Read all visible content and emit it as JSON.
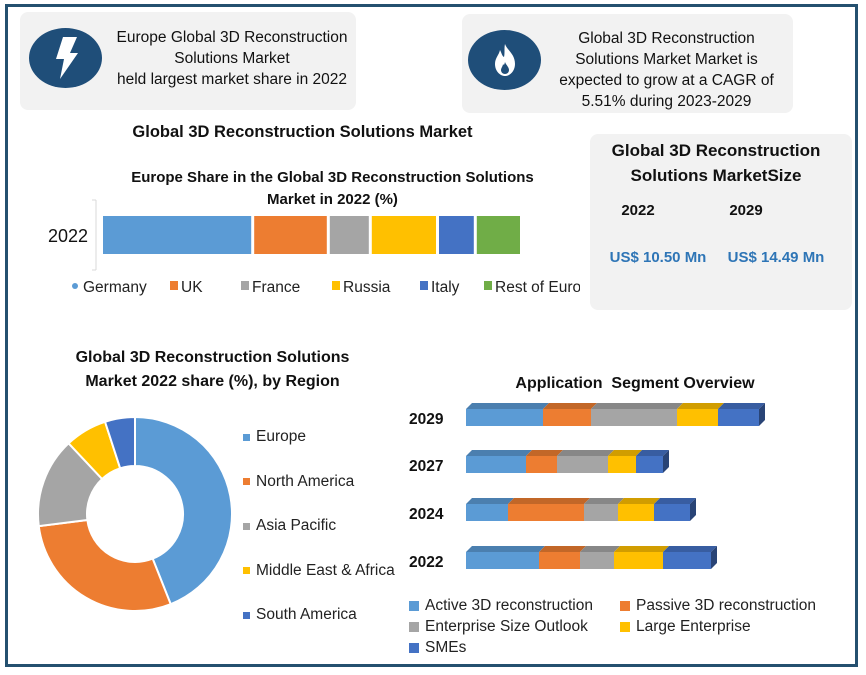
{
  "cards": {
    "left": {
      "icon": "lightning-bolt-icon",
      "lines": [
        "Europe Global 3D Reconstruction",
        "Solutions Market",
        "held largest market share in 2022"
      ]
    },
    "right": {
      "icon": "flame-icon",
      "lines": [
        "Global 3D Reconstruction",
        "Solutions Market Market is",
        "expected to grow at a CAGR of",
        "5.51% during 2023-2029"
      ]
    }
  },
  "main_title": "Global 3D Reconstruction Solutions Market",
  "market_size": {
    "title_lines": [
      "Global 3D Reconstruction",
      "Solutions MarketSize"
    ],
    "years": [
      "2022",
      "2029"
    ],
    "values": [
      "US$ 10.50 Mn",
      "US$ 14.49 Mn"
    ],
    "value_color": "#2e75b6"
  },
  "chart_data": [
    {
      "type": "bar",
      "orientation": "horizontal-stacked",
      "title": "Europe Share in the Global 3D Reconstruction Solutions Market in 2022 (%)",
      "title_lines": [
        "Europe Share in the Global 3D Reconstruction Solutions",
        "Market in 2022 (%)"
      ],
      "categories": [
        "2022"
      ],
      "series": [
        {
          "name": "Germany",
          "values": [
            36
          ],
          "color": "#5b9bd5"
        },
        {
          "name": "UK",
          "values": [
            18
          ],
          "color": "#ed7d31"
        },
        {
          "name": "France",
          "values": [
            10
          ],
          "color": "#a5a5a5"
        },
        {
          "name": "Russia",
          "values": [
            16
          ],
          "color": "#ffc000"
        },
        {
          "name": "Italy",
          "values": [
            9
          ],
          "color": "#4472c4"
        },
        {
          "name": "Rest of Europe",
          "values": [
            11
          ],
          "color": "#70ad47"
        }
      ],
      "legend": "bottom",
      "grid": false
    },
    {
      "type": "pie",
      "style": "donut",
      "title": "Global 3D Reconstruction Solutions Market 2022 share (%), by Region",
      "title_lines": [
        "Global 3D Reconstruction Solutions",
        "Market 2022 share (%), by Region"
      ],
      "categories": [
        "Europe",
        "North America",
        "Asia Pacific",
        "Middle East & Africa",
        "South America"
      ],
      "values": [
        44,
        29,
        15,
        7,
        5
      ],
      "colors": [
        "#5b9bd5",
        "#ed7d31",
        "#a5a5a5",
        "#ffc000",
        "#4472c4"
      ],
      "legend": "right"
    },
    {
      "type": "bar",
      "orientation": "horizontal-stacked-3d",
      "title": "Application  Segment Overview",
      "categories": [
        "2029",
        "2027",
        "2024",
        "2022"
      ],
      "series": [
        {
          "name": "Active 3D reconstruction",
          "values": [
            77,
            60,
            42,
            73
          ],
          "color": "#5b9bd5"
        },
        {
          "name": "Passive 3D reconstruction",
          "values": [
            48,
            31,
            76,
            41
          ],
          "color": "#ed7d31"
        },
        {
          "name": "Enterprise Size Outlook",
          "values": [
            86,
            51,
            34,
            34
          ],
          "color": "#a5a5a5"
        },
        {
          "name": "Large Enterprise",
          "values": [
            41,
            28,
            36,
            49
          ],
          "color": "#ffc000"
        },
        {
          "name": "SMEs",
          "values": [
            41,
            27,
            36,
            48
          ],
          "color": "#4472c4"
        }
      ],
      "legend": "bottom",
      "grid": false,
      "xlim": [
        0,
        300
      ]
    }
  ]
}
